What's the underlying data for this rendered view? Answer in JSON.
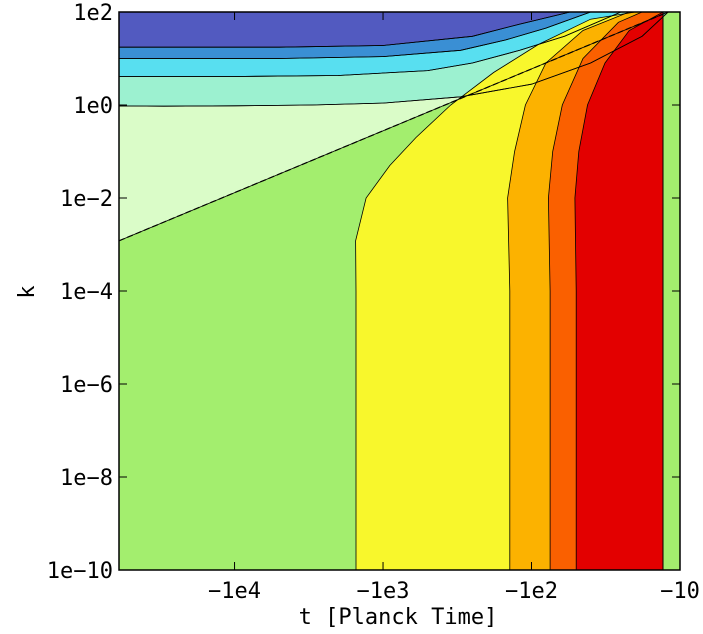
{
  "chart_data": {
    "type": "area",
    "title": "",
    "xlabel": "t [Planck Time]",
    "ylabel": "k",
    "x_scale": "symlog-negative (log of -t, decreasing magnitude to the right)",
    "y_scale": "log",
    "xlim": [
      -60000,
      -10
    ],
    "ylim": [
      1e-10,
      100
    ],
    "x_ticks": [
      {
        "value": -10000,
        "label": "−1e4"
      },
      {
        "value": -1000,
        "label": "−1e3"
      },
      {
        "value": -100,
        "label": "−1e2"
      },
      {
        "value": -10,
        "label": "−10"
      }
    ],
    "y_ticks": [
      {
        "value": 1e-10,
        "label": "1e−10"
      },
      {
        "value": 1e-08,
        "label": "1e−8"
      },
      {
        "value": 1e-06,
        "label": "1e−6"
      },
      {
        "value": 0.0001,
        "label": "1e−4"
      },
      {
        "value": 0.01,
        "label": "1e−2"
      },
      {
        "value": 1,
        "label": "1e0"
      },
      {
        "value": 100,
        "label": "1e2"
      }
    ],
    "grid": false,
    "legend": "none",
    "background_region": {
      "color": "#a3ee6e"
    },
    "dashed_line": {
      "style": "dashed",
      "points": [
        [
          -60000,
          0.0012
        ],
        [
          -12,
          100
        ]
      ]
    },
    "regions": [
      {
        "color": "#dafcc8",
        "points": [
          [
            -60000,
            0.0012
          ],
          [
            -60000,
            0.95
          ],
          [
            -30000,
            0.94
          ],
          [
            -10000,
            0.96
          ],
          [
            -3000,
            1.0
          ],
          [
            -1000,
            1.1
          ],
          [
            -300,
            1.5
          ],
          [
            -100,
            2.8
          ],
          [
            -40,
            8
          ],
          [
            -18,
            30
          ],
          [
            -12,
            100
          ]
        ]
      },
      {
        "color": "#9cf1d0",
        "points": [
          [
            -60000,
            0.95
          ],
          [
            -30000,
            0.94
          ],
          [
            -10000,
            0.96
          ],
          [
            -3000,
            1.0
          ],
          [
            -1000,
            1.1
          ],
          [
            -300,
            1.5
          ],
          [
            -100,
            2.8
          ],
          [
            -40,
            8
          ],
          [
            -18,
            30
          ],
          [
            -12,
            100
          ],
          [
            -25,
            100
          ],
          [
            -60,
            30
          ],
          [
            -120,
            15
          ],
          [
            -250,
            8
          ],
          [
            -500,
            5.5
          ],
          [
            -2000,
            4.3
          ],
          [
            -10000,
            4.1
          ],
          [
            -60000,
            4.1
          ]
        ]
      },
      {
        "color": "#58dff0",
        "points": [
          [
            -60000,
            4.1
          ],
          [
            -10000,
            4.1
          ],
          [
            -2000,
            4.3
          ],
          [
            -500,
            5.5
          ],
          [
            -250,
            8
          ],
          [
            -120,
            15
          ],
          [
            -60,
            30
          ],
          [
            -25,
            100
          ],
          [
            -40,
            100
          ],
          [
            -80,
            45
          ],
          [
            -150,
            25
          ],
          [
            -300,
            15
          ],
          [
            -1000,
            11
          ],
          [
            -5000,
            10
          ],
          [
            -60000,
            10
          ]
        ]
      },
      {
        "color": "#3a8fd4",
        "points": [
          [
            -60000,
            10
          ],
          [
            -5000,
            10
          ],
          [
            -1000,
            11
          ],
          [
            -300,
            15
          ],
          [
            -150,
            25
          ],
          [
            -80,
            45
          ],
          [
            -40,
            100
          ],
          [
            -55,
            100
          ],
          [
            -120,
            55
          ],
          [
            -250,
            30
          ],
          [
            -1000,
            19
          ],
          [
            -5000,
            17.5
          ],
          [
            -60000,
            17.5
          ]
        ]
      },
      {
        "color": "#525ac0",
        "points": [
          [
            -60000,
            17.5
          ],
          [
            -5000,
            17.5
          ],
          [
            -1000,
            19
          ],
          [
            -250,
            30
          ],
          [
            -120,
            55
          ],
          [
            -55,
            100
          ],
          [
            -60000,
            100
          ]
        ]
      },
      {
        "color": "#f8f72c",
        "points": [
          [
            -1520,
            1e-10
          ],
          [
            -1520,
            0.0001
          ],
          [
            -1530,
            0.0012
          ],
          [
            -1300,
            0.01
          ],
          [
            -900,
            0.05
          ],
          [
            -600,
            0.2
          ],
          [
            -350,
            1.0
          ],
          [
            -180,
            5
          ],
          [
            -90,
            20
          ],
          [
            -40,
            70
          ],
          [
            -20,
            100
          ],
          [
            -13,
            100
          ],
          [
            -13,
            1e-10
          ]
        ]
      },
      {
        "color": "#fcb200",
        "points": [
          [
            -140,
            1e-10
          ],
          [
            -140,
            0.0001
          ],
          [
            -145,
            0.01
          ],
          [
            -130,
            0.1
          ],
          [
            -110,
            1.0
          ],
          [
            -80,
            8
          ],
          [
            -45,
            40
          ],
          [
            -22,
            100
          ],
          [
            -13,
            100
          ],
          [
            -13,
            1e-10
          ]
        ]
      },
      {
        "color": "#fa6000",
        "points": [
          [
            -75,
            1e-10
          ],
          [
            -75,
            0.0001
          ],
          [
            -77,
            0.01
          ],
          [
            -72,
            0.1
          ],
          [
            -62,
            1.0
          ],
          [
            -45,
            10
          ],
          [
            -26,
            60
          ],
          [
            -18,
            100
          ],
          [
            -13,
            100
          ],
          [
            -13,
            1e-10
          ]
        ]
      },
      {
        "color": "#e30000",
        "points": [
          [
            -50,
            1e-10
          ],
          [
            -50,
            0.0001
          ],
          [
            -51,
            0.01
          ],
          [
            -48,
            0.1
          ],
          [
            -42,
            1.0
          ],
          [
            -32,
            8
          ],
          [
            -22,
            40
          ],
          [
            -13,
            100
          ],
          [
            -13,
            1e-10
          ]
        ]
      }
    ]
  }
}
